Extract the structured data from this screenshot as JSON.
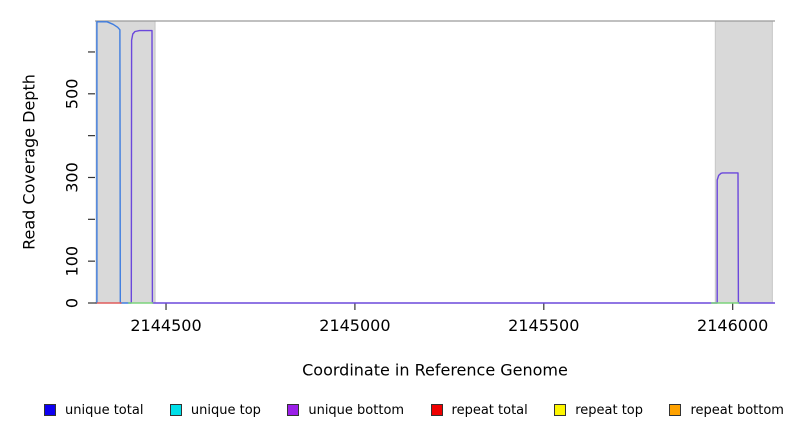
{
  "chart_data": {
    "type": "line",
    "title": "",
    "xlabel": "Coordinate in Reference Genome",
    "ylabel": "Read Coverage Depth",
    "xlim": [
      2144312,
      2146112
    ],
    "ylim": [
      0,
      674
    ],
    "grid": false,
    "x_ticks": [
      {
        "v": 2144500,
        "label": "2144500"
      },
      {
        "v": 2145000,
        "label": "2145000"
      },
      {
        "v": 2145500,
        "label": "2145500"
      },
      {
        "v": 2146000,
        "label": "2146000"
      }
    ],
    "y_ticks": [
      {
        "v": 0,
        "label": "0"
      },
      {
        "v": 100,
        "label": "100"
      },
      {
        "v": 200,
        "label": ""
      },
      {
        "v": 300,
        "label": "300"
      },
      {
        "v": 400,
        "label": ""
      },
      {
        "v": 500,
        "label": "500"
      },
      {
        "v": 600,
        "label": ""
      }
    ],
    "repeat_regions": [
      {
        "start": 2144315,
        "end": 2144471
      },
      {
        "start": 2145954,
        "end": 2146105
      }
    ],
    "region_fill": "#d9d9d9",
    "region_border": "#c6c6c6",
    "top_border_color": "#9a9a9a",
    "series": [
      {
        "name": "unique total",
        "color": "#3f7de0",
        "points": [
          [
            2144317,
            0
          ],
          [
            2144317,
            672
          ],
          [
            2144344,
            672
          ],
          [
            2144360,
            666
          ],
          [
            2144372,
            659
          ],
          [
            2144378,
            653
          ],
          [
            2144379,
            0
          ],
          [
            2144408,
            0
          ]
        ]
      },
      {
        "name": "unique bottom",
        "color": "#6b48dc",
        "points": [
          [
            2144408,
            0
          ],
          [
            2144409,
            628
          ],
          [
            2144412,
            643
          ],
          [
            2144418,
            649
          ],
          [
            2144430,
            651
          ],
          [
            2144463,
            651
          ],
          [
            2144464,
            0
          ],
          [
            2145959,
            0
          ],
          [
            2145959,
            294
          ],
          [
            2145963,
            305
          ],
          [
            2145969,
            310
          ],
          [
            2145973,
            311
          ],
          [
            2146014,
            311
          ],
          [
            2146015,
            0
          ],
          [
            2146112,
            0
          ]
        ]
      }
    ],
    "baseline_segments": [
      {
        "from": 2144317,
        "to": 2144382,
        "color": "#e05c5c"
      },
      {
        "from": 2144400,
        "to": 2144466,
        "color": "#7cd47c"
      },
      {
        "from": 2145943,
        "to": 2146017,
        "color": "#7cd47c"
      }
    ]
  },
  "legend": {
    "items": [
      {
        "label": "unique total",
        "color": "#0d00f2"
      },
      {
        "label": "unique top",
        "color": "#00dfe8"
      },
      {
        "label": "unique bottom",
        "color": "#9b1fe8"
      },
      {
        "label": "repeat total",
        "color": "#ef0000"
      },
      {
        "label": "repeat top",
        "color": "#fdf500"
      },
      {
        "label": "repeat bottom",
        "color": "#ffa200"
      }
    ]
  }
}
